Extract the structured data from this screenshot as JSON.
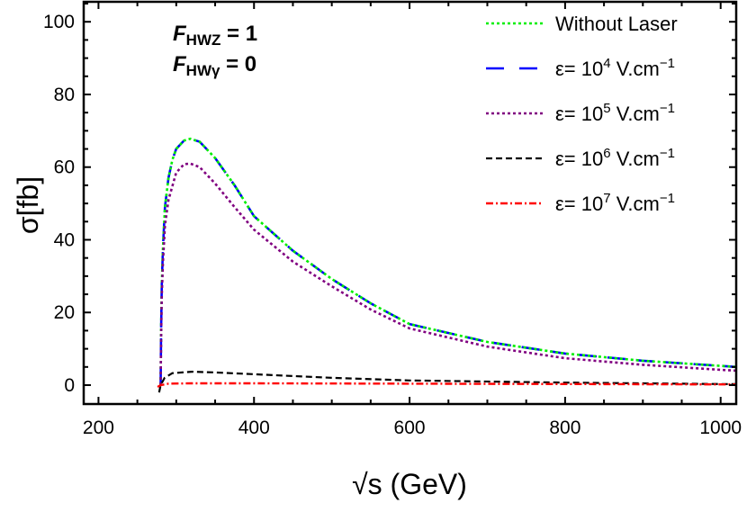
{
  "chart_data": {
    "type": "line",
    "xlabel": "√s (GeV)",
    "xlabel_parts": {
      "radical": "√",
      "var": "s",
      "unit": "(GeV)"
    },
    "ylabel": "σ[fb]",
    "ylabel_parts": {
      "sym": "σ",
      "unit": "[fb]"
    },
    "xlim": [
      181,
      1020
    ],
    "ylim": [
      -5.2,
      105.5
    ],
    "xticks": [
      200,
      400,
      600,
      800,
      1000
    ],
    "yticks": [
      0,
      20,
      40,
      60,
      80,
      100
    ],
    "grid": false,
    "legend_position": "top-right",
    "annotations": [
      {
        "F": "F",
        "sub": "HWZ",
        "rest": " = 1"
      },
      {
        "F": "F",
        "sub": "HWγ",
        "rest": " = 0"
      }
    ],
    "series": [
      {
        "name": "ε= 10^4 V.cm^-1",
        "label_base": "ε= 10",
        "label_exp": "4",
        "label_unit": " V.cm",
        "label_unit_exp": "−1",
        "color": "#0000ff",
        "style": "long-dash",
        "points": [
          [
            280,
            0
          ],
          [
            280.5,
            15
          ],
          [
            281.5,
            28
          ],
          [
            283,
            38
          ],
          [
            285.5,
            49
          ],
          [
            290,
            57
          ],
          [
            295,
            62
          ],
          [
            300,
            65
          ],
          [
            310,
            67.3
          ],
          [
            318,
            67.8
          ],
          [
            330,
            67
          ],
          [
            350,
            62.5
          ],
          [
            375,
            55
          ],
          [
            400,
            46.5
          ],
          [
            450,
            37
          ],
          [
            500,
            29.2
          ],
          [
            550,
            22.5
          ],
          [
            600,
            16.8
          ],
          [
            700,
            11.9
          ],
          [
            800,
            8.7
          ],
          [
            900,
            6.7
          ],
          [
            1000,
            5.3
          ],
          [
            1020,
            5.0
          ]
        ]
      },
      {
        "name": "Without Laser",
        "label_base": "Without Laser",
        "color": "#00ee00",
        "style": "dotted",
        "points": [
          [
            280,
            0
          ],
          [
            280.5,
            15
          ],
          [
            281.5,
            28
          ],
          [
            283,
            38
          ],
          [
            285.5,
            49
          ],
          [
            290,
            57
          ],
          [
            295,
            62
          ],
          [
            300,
            65
          ],
          [
            310,
            67.3
          ],
          [
            318,
            67.8
          ],
          [
            330,
            67
          ],
          [
            350,
            62.5
          ],
          [
            375,
            55
          ],
          [
            400,
            46.5
          ],
          [
            450,
            37
          ],
          [
            500,
            29.2
          ],
          [
            550,
            22.5
          ],
          [
            600,
            16.8
          ],
          [
            700,
            11.9
          ],
          [
            800,
            8.7
          ],
          [
            900,
            6.7
          ],
          [
            1000,
            5.3
          ],
          [
            1020,
            5.0
          ]
        ]
      },
      {
        "name": "ε= 10^5 V.cm^-1",
        "label_base": "ε= 10",
        "label_exp": "5",
        "label_unit": " V.cm",
        "label_unit_exp": "−1",
        "color": "#800080",
        "style": "dotted",
        "points": [
          [
            280,
            0
          ],
          [
            280.5,
            13
          ],
          [
            281.5,
            25
          ],
          [
            283,
            34
          ],
          [
            285.5,
            44
          ],
          [
            290,
            51
          ],
          [
            300,
            58.5
          ],
          [
            310,
            60.8
          ],
          [
            318,
            61
          ],
          [
            330,
            60
          ],
          [
            350,
            55.5
          ],
          [
            375,
            49
          ],
          [
            400,
            42.8
          ],
          [
            450,
            34
          ],
          [
            500,
            27.2
          ],
          [
            550,
            20.8
          ],
          [
            600,
            15.6
          ],
          [
            700,
            10.6
          ],
          [
            800,
            7.4
          ],
          [
            900,
            5.6
          ],
          [
            1000,
            4.2
          ],
          [
            1020,
            4.0
          ]
        ]
      },
      {
        "name": "ε= 10^6 V.cm^-1",
        "label_base": "ε= 10",
        "label_exp": "6",
        "label_unit": " V.cm",
        "label_unit_exp": "−1",
        "color": "#000000",
        "style": "dashed",
        "points": [
          [
            278,
            -2
          ],
          [
            280,
            0
          ],
          [
            285,
            2
          ],
          [
            295,
            3.3
          ],
          [
            320,
            3.7
          ],
          [
            350,
            3.5
          ],
          [
            400,
            3
          ],
          [
            500,
            2
          ],
          [
            600,
            1.3
          ],
          [
            800,
            0.7
          ],
          [
            1000,
            0.3
          ],
          [
            1020,
            0.3
          ]
        ]
      },
      {
        "name": "ε= 10^7 V.cm^-1",
        "label_base": "ε= 10",
        "label_exp": "7",
        "label_unit": " V.cm",
        "label_unit_exp": "−1",
        "color": "#ff0000",
        "style": "dash-dot",
        "points": [
          [
            276,
            -0.5
          ],
          [
            280,
            0
          ],
          [
            290,
            0.4
          ],
          [
            320,
            0.5
          ],
          [
            400,
            0.5
          ],
          [
            600,
            0.4
          ],
          [
            800,
            0.3
          ],
          [
            1000,
            0.2
          ],
          [
            1020,
            0.2
          ]
        ]
      }
    ],
    "legend_order": [
      1,
      0,
      2,
      3,
      4
    ]
  }
}
